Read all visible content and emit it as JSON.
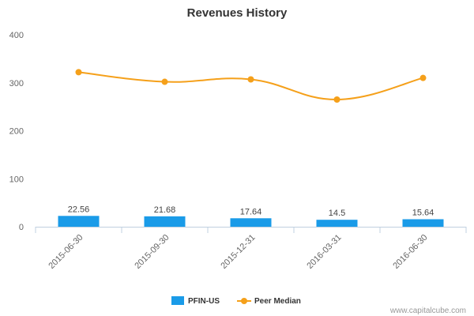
{
  "watermark": "www.capitalcube.com",
  "chart_data": {
    "type": "bar",
    "title": "Revenues History",
    "xlabel": "",
    "ylabel": "",
    "categories": [
      "2015-06-30",
      "2015-09-30",
      "2015-12-31",
      "2016-03-31",
      "2016-06-30"
    ],
    "ylim": [
      0,
      400
    ],
    "yticks": [
      0,
      100,
      200,
      300,
      400
    ],
    "grid": false,
    "legend_position": "bottom",
    "series": [
      {
        "name": "PFIN-US",
        "type": "bar",
        "color": "#1a9be8",
        "values": [
          22.56,
          21.68,
          17.64,
          14.5,
          15.64
        ],
        "labels": [
          "22.56",
          "21.68",
          "17.64",
          "14.5",
          "15.64"
        ]
      },
      {
        "name": "Peer Median",
        "type": "line",
        "color": "#f5a01a",
        "values": [
          322,
          302,
          307,
          265,
          310
        ]
      }
    ]
  }
}
